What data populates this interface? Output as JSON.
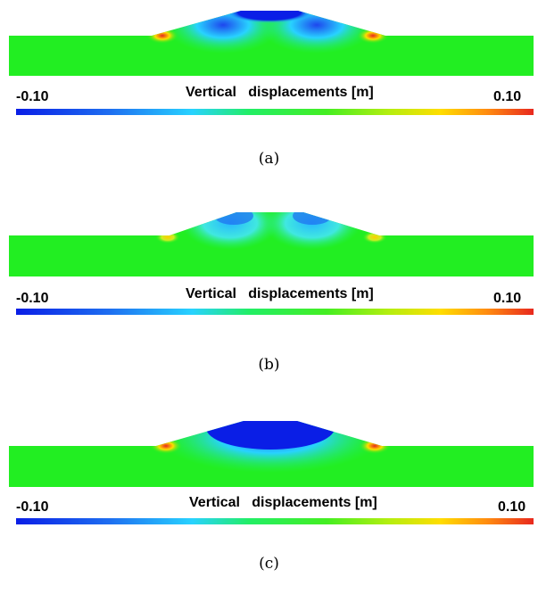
{
  "colors": {
    "soil": "#22ee22",
    "blue": "#0a1ee6",
    "cyan": "#28d2ff",
    "yellow": "#ffdd00",
    "red": "#e8281e"
  },
  "colorbar": {
    "min_label": "-0.10",
    "max_label": "0.10",
    "title": "Vertical   displacements [m]",
    "min_value": -0.1,
    "max_value": 0.1
  },
  "panels": [
    {
      "caption": "(a)"
    },
    {
      "caption": "(b)"
    },
    {
      "caption": "(c)"
    }
  ]
}
